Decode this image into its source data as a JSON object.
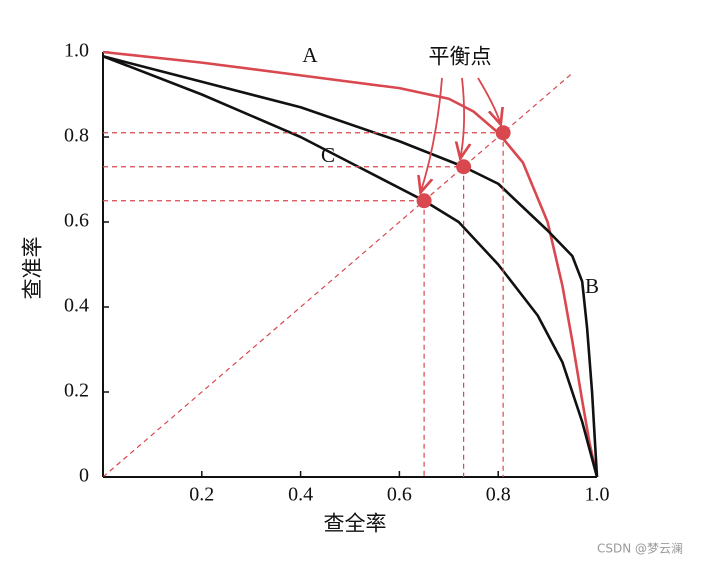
{
  "chart_data": {
    "type": "line",
    "x_label": "查全率",
    "y_label": "查准率",
    "xlim": [
      0,
      1
    ],
    "ylim": [
      0,
      1
    ],
    "xticks": [
      0.2,
      0.4,
      0.6,
      0.8,
      {
        "value": 1,
        "label": "1.0"
      }
    ],
    "yticks": [
      0,
      0.2,
      0.4,
      0.6,
      0.8,
      {
        "value": 1,
        "label": "1.0"
      }
    ],
    "series": [
      {
        "name": "A",
        "color": "#d9474f",
        "x": [
          0,
          0.2,
          0.4,
          0.6,
          0.7,
          0.75,
          0.8,
          0.85,
          0.9,
          0.93,
          0.95,
          0.97,
          0.985,
          1
        ],
        "values": [
          1.0,
          0.975,
          0.945,
          0.915,
          0.89,
          0.86,
          0.81,
          0.74,
          0.6,
          0.45,
          0.32,
          0.18,
          0.08,
          0
        ]
      },
      {
        "name": "B",
        "color": "#111111",
        "x": [
          0,
          0.2,
          0.4,
          0.6,
          0.73,
          0.8,
          0.9,
          0.95,
          0.97,
          0.98,
          0.99,
          1
        ],
        "values": [
          0.99,
          0.93,
          0.87,
          0.79,
          0.73,
          0.69,
          0.58,
          0.52,
          0.46,
          0.35,
          0.2,
          0
        ]
      },
      {
        "name": "C",
        "color": "#111111",
        "x": [
          0,
          0.2,
          0.4,
          0.5,
          0.65,
          0.72,
          0.8,
          0.88,
          0.93,
          0.97,
          1
        ],
        "values": [
          0.99,
          0.9,
          0.8,
          0.74,
          0.65,
          0.6,
          0.5,
          0.38,
          0.27,
          0.13,
          0
        ]
      }
    ],
    "equilibrium": {
      "label": "平衡点",
      "color": "#d9474f",
      "x": [
        0.65,
        0.73,
        0.81
      ],
      "values": [
        0.65,
        0.73,
        0.81
      ]
    },
    "watermark": "CSDN @梦云澜"
  }
}
